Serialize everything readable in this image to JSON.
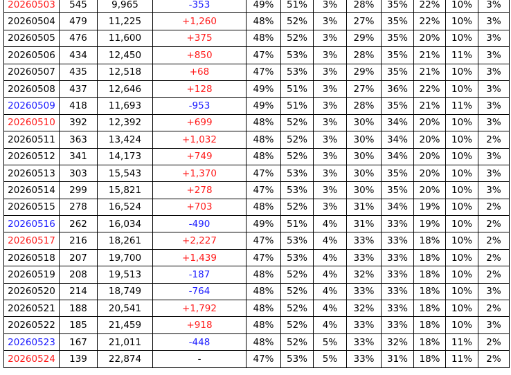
{
  "table": {
    "rows": [
      [
        "20260503",
        "545",
        "9,965",
        "-353",
        "49%",
        "51%",
        "3%",
        "28%",
        "35%",
        "22%",
        "10%",
        "3%"
      ],
      [
        "20260504",
        "479",
        "11,225",
        "+1,260",
        "48%",
        "52%",
        "3%",
        "27%",
        "35%",
        "22%",
        "10%",
        "3%"
      ],
      [
        "20260505",
        "476",
        "11,600",
        "+375",
        "48%",
        "52%",
        "3%",
        "29%",
        "35%",
        "20%",
        "10%",
        "3%"
      ],
      [
        "20260506",
        "434",
        "12,450",
        "+850",
        "47%",
        "53%",
        "3%",
        "28%",
        "35%",
        "21%",
        "11%",
        "3%"
      ],
      [
        "20260507",
        "435",
        "12,518",
        "+68",
        "47%",
        "53%",
        "3%",
        "29%",
        "35%",
        "21%",
        "10%",
        "3%"
      ],
      [
        "20260508",
        "437",
        "12,646",
        "+128",
        "49%",
        "51%",
        "3%",
        "27%",
        "36%",
        "22%",
        "10%",
        "3%"
      ],
      [
        "20260509",
        "418",
        "11,693",
        "-953",
        "49%",
        "51%",
        "3%",
        "28%",
        "35%",
        "21%",
        "11%",
        "3%"
      ],
      [
        "20260510",
        "392",
        "12,392",
        "+699",
        "48%",
        "52%",
        "3%",
        "30%",
        "34%",
        "20%",
        "10%",
        "3%"
      ],
      [
        "20260511",
        "363",
        "13,424",
        "+1,032",
        "48%",
        "52%",
        "3%",
        "30%",
        "34%",
        "20%",
        "10%",
        "2%"
      ],
      [
        "20260512",
        "341",
        "14,173",
        "+749",
        "48%",
        "52%",
        "3%",
        "30%",
        "34%",
        "20%",
        "10%",
        "3%"
      ],
      [
        "20260513",
        "303",
        "15,543",
        "+1,370",
        "47%",
        "53%",
        "3%",
        "30%",
        "35%",
        "20%",
        "10%",
        "3%"
      ],
      [
        "20260514",
        "299",
        "15,821",
        "+278",
        "47%",
        "53%",
        "3%",
        "30%",
        "35%",
        "20%",
        "10%",
        "3%"
      ],
      [
        "20260515",
        "278",
        "16,524",
        "+703",
        "48%",
        "52%",
        "3%",
        "31%",
        "34%",
        "19%",
        "10%",
        "2%"
      ],
      [
        "20260516",
        "262",
        "16,034",
        "-490",
        "49%",
        "51%",
        "4%",
        "31%",
        "33%",
        "19%",
        "10%",
        "2%"
      ],
      [
        "20260517",
        "216",
        "18,261",
        "+2,227",
        "47%",
        "53%",
        "4%",
        "33%",
        "33%",
        "18%",
        "10%",
        "2%"
      ],
      [
        "20260518",
        "207",
        "19,700",
        "+1,439",
        "47%",
        "53%",
        "4%",
        "33%",
        "33%",
        "18%",
        "10%",
        "2%"
      ],
      [
        "20260519",
        "208",
        "19,513",
        "-187",
        "48%",
        "52%",
        "4%",
        "32%",
        "33%",
        "18%",
        "10%",
        "2%"
      ],
      [
        "20260520",
        "214",
        "18,749",
        "-764",
        "48%",
        "52%",
        "4%",
        "33%",
        "33%",
        "18%",
        "10%",
        "3%"
      ],
      [
        "20260521",
        "188",
        "20,541",
        "+1,792",
        "48%",
        "52%",
        "4%",
        "32%",
        "33%",
        "18%",
        "10%",
        "2%"
      ],
      [
        "20260522",
        "185",
        "21,459",
        "+918",
        "48%",
        "52%",
        "4%",
        "33%",
        "33%",
        "18%",
        "10%",
        "3%"
      ],
      [
        "20260523",
        "167",
        "21,011",
        "-448",
        "48%",
        "52%",
        "5%",
        "33%",
        "32%",
        "18%",
        "11%",
        "2%"
      ],
      [
        "20260524",
        "139",
        "22,874",
        "-",
        "47%",
        "53%",
        "5%",
        "33%",
        "31%",
        "18%",
        "11%",
        "2%"
      ]
    ]
  }
}
